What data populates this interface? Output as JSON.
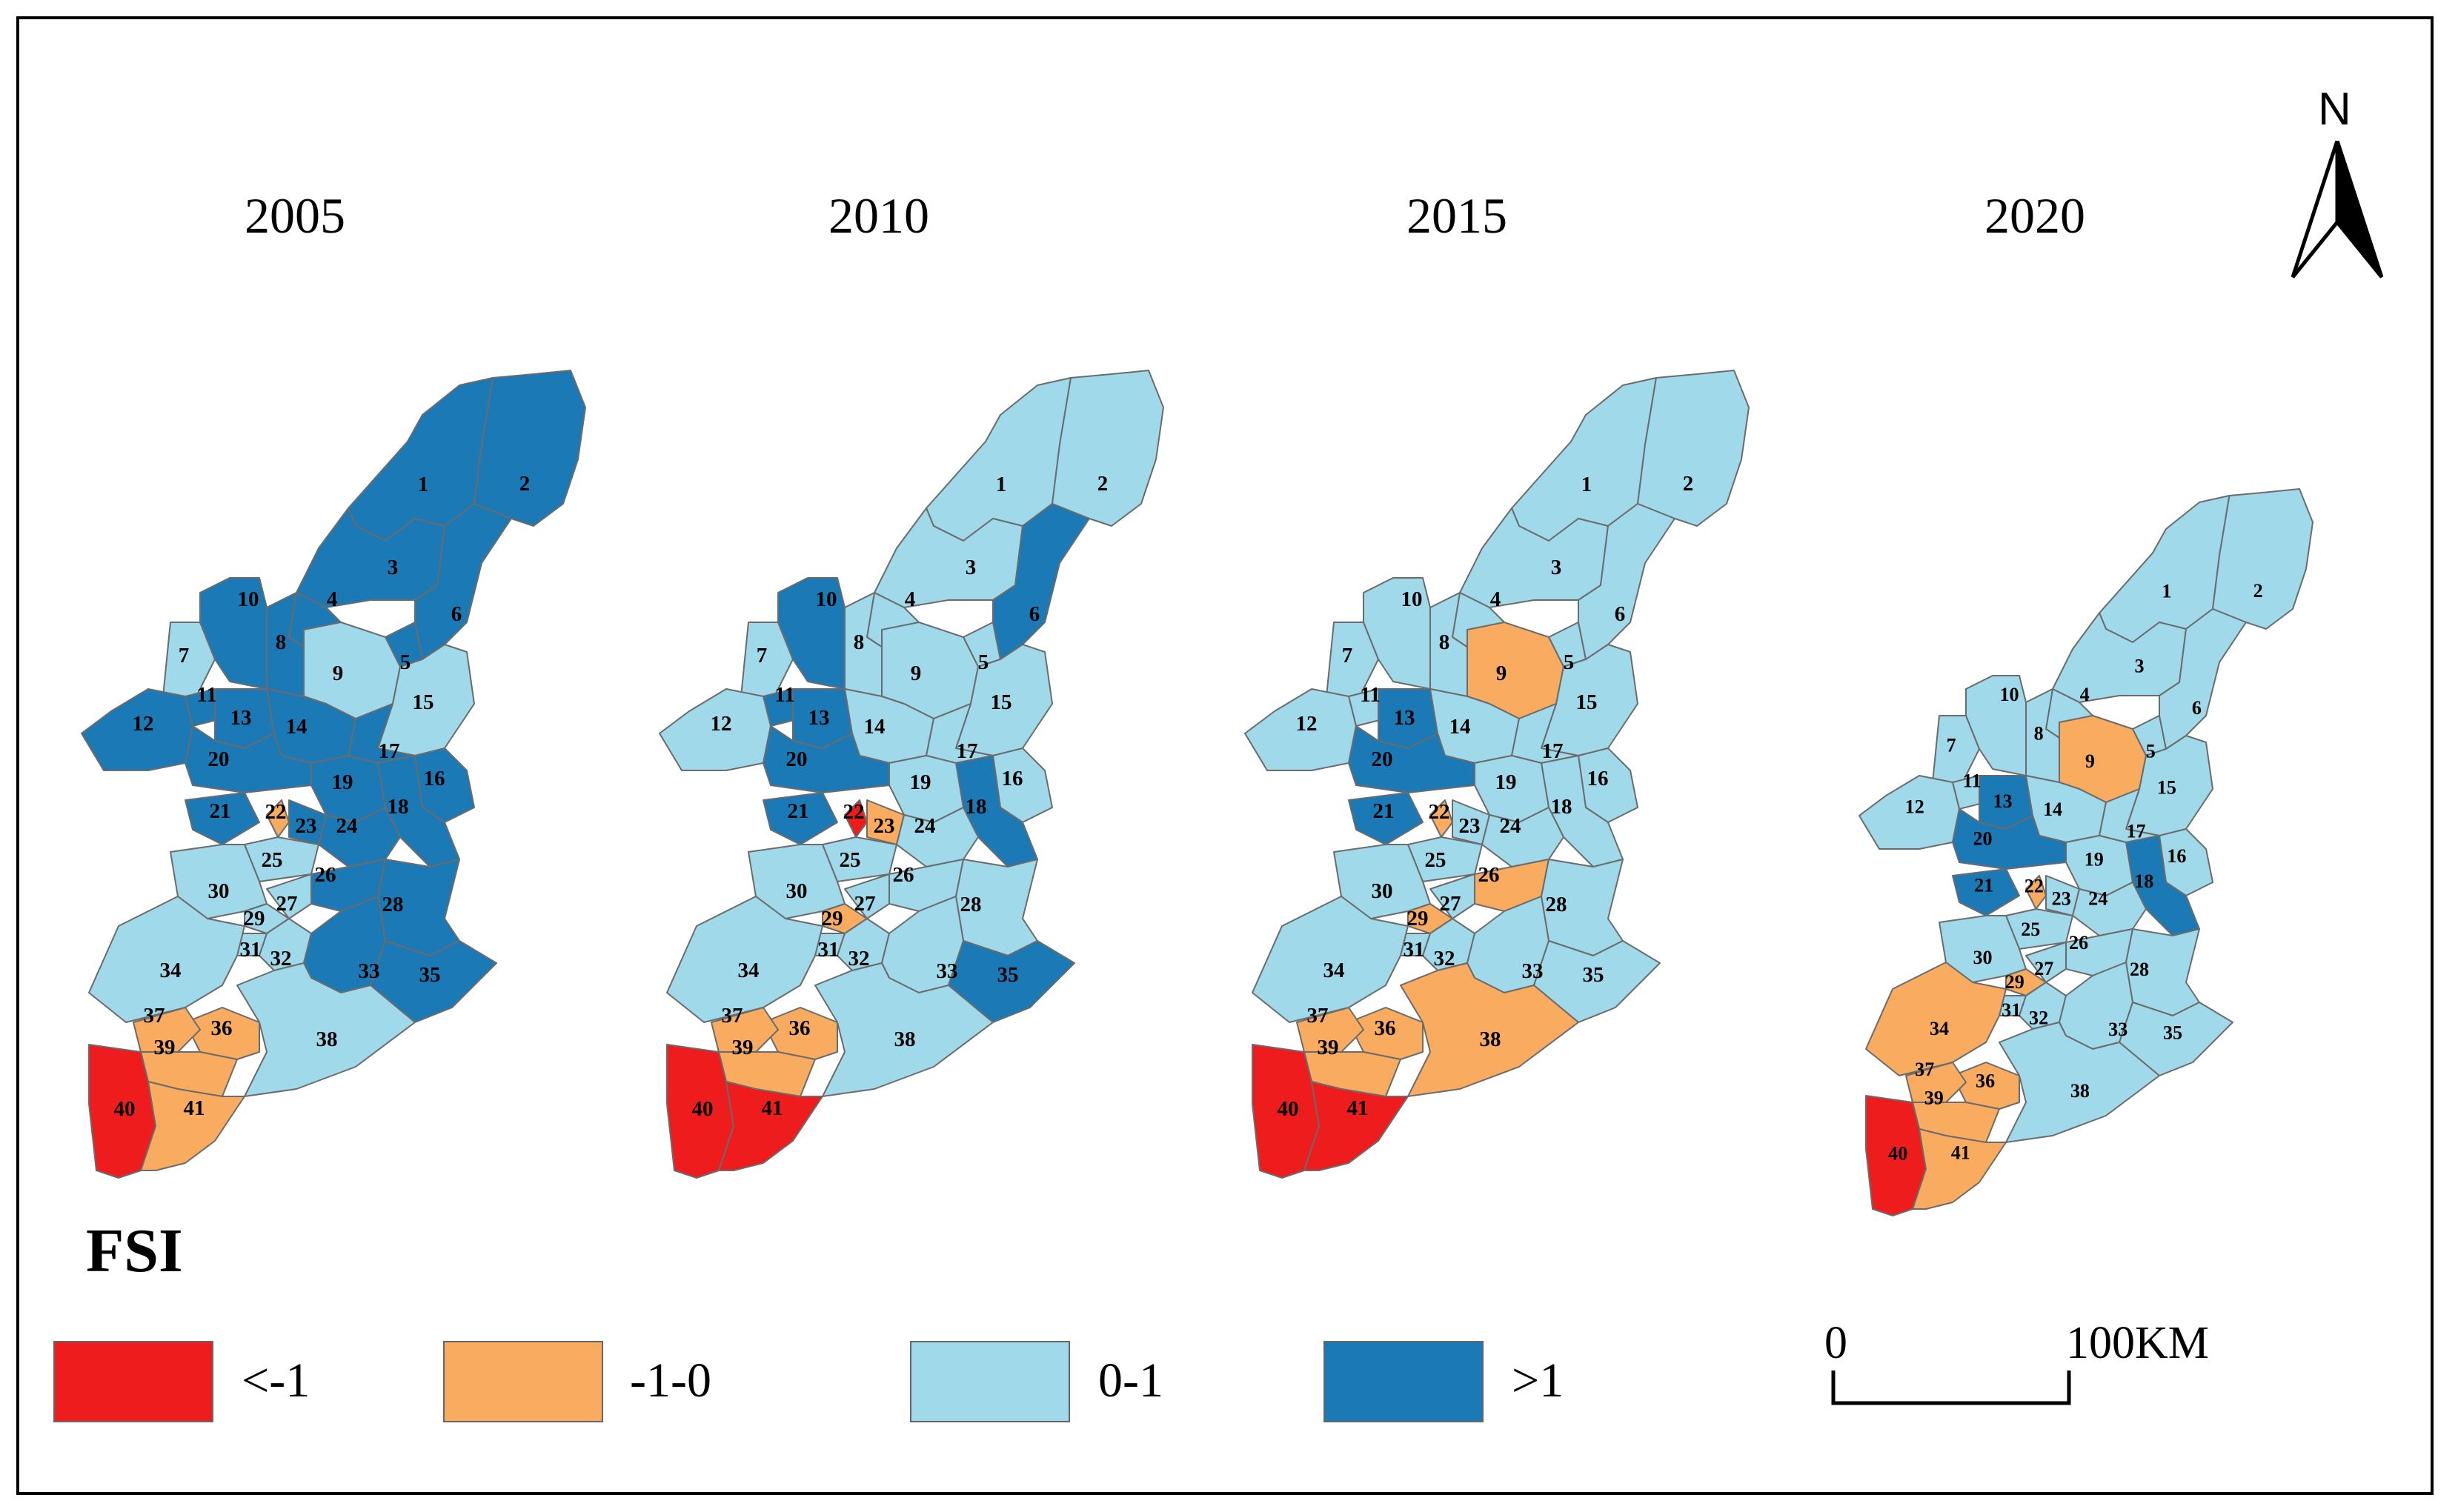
{
  "years": [
    "2005",
    "2010",
    "2015",
    "2020"
  ],
  "colors": {
    "lt_neg1": "#ee1c1c",
    "neg1_0": "#f9ab5f",
    "zero_1": "#9fd9ea",
    "gt1": "#1b79b6"
  },
  "region_ids": [
    "1",
    "2",
    "3",
    "4",
    "5",
    "6",
    "7",
    "8",
    "9",
    "10",
    "11",
    "12",
    "13",
    "14",
    "15",
    "16",
    "17",
    "18",
    "19",
    "20",
    "21",
    "22",
    "23",
    "24",
    "25",
    "26",
    "27",
    "28",
    "29",
    "30",
    "31",
    "32",
    "33",
    "34",
    "35",
    "36",
    "37",
    "38",
    "39",
    "40",
    "41"
  ],
  "panels": [
    {
      "year": "2005",
      "classes": {
        "1": "gt1",
        "2": "gt1",
        "3": "gt1",
        "4": "gt1",
        "5": "gt1",
        "6": "gt1",
        "7": "zero_1",
        "8": "gt1",
        "9": "zero_1",
        "10": "gt1",
        "11": "gt1",
        "12": "gt1",
        "13": "gt1",
        "14": "gt1",
        "15": "zero_1",
        "16": "gt1",
        "17": "gt1",
        "18": "gt1",
        "19": "gt1",
        "20": "gt1",
        "21": "gt1",
        "22": "neg1_0",
        "23": "gt1",
        "24": "gt1",
        "25": "zero_1",
        "26": "gt1",
        "27": "zero_1",
        "28": "gt1",
        "29": "zero_1",
        "30": "zero_1",
        "31": "zero_1",
        "32": "zero_1",
        "33": "gt1",
        "34": "zero_1",
        "35": "gt1",
        "36": "neg1_0",
        "37": "neg1_0",
        "38": "zero_1",
        "39": "neg1_0",
        "40": "lt_neg1",
        "41": "neg1_0"
      }
    },
    {
      "year": "2010",
      "classes": {
        "1": "zero_1",
        "2": "zero_1",
        "3": "zero_1",
        "4": "zero_1",
        "5": "zero_1",
        "6": "gt1",
        "7": "zero_1",
        "8": "zero_1",
        "9": "zero_1",
        "10": "gt1",
        "11": "gt1",
        "12": "zero_1",
        "13": "gt1",
        "14": "zero_1",
        "15": "zero_1",
        "16": "zero_1",
        "17": "zero_1",
        "18": "gt1",
        "19": "zero_1",
        "20": "gt1",
        "21": "gt1",
        "22": "lt_neg1",
        "23": "neg1_0",
        "24": "zero_1",
        "25": "zero_1",
        "26": "zero_1",
        "27": "zero_1",
        "28": "zero_1",
        "29": "neg1_0",
        "30": "zero_1",
        "31": "zero_1",
        "32": "zero_1",
        "33": "zero_1",
        "34": "zero_1",
        "35": "gt1",
        "36": "neg1_0",
        "37": "neg1_0",
        "38": "zero_1",
        "39": "neg1_0",
        "40": "lt_neg1",
        "41": "lt_neg1"
      }
    },
    {
      "year": "2015",
      "classes": {
        "1": "zero_1",
        "2": "zero_1",
        "3": "zero_1",
        "4": "zero_1",
        "5": "zero_1",
        "6": "zero_1",
        "7": "zero_1",
        "8": "zero_1",
        "9": "neg1_0",
        "10": "zero_1",
        "11": "zero_1",
        "12": "zero_1",
        "13": "gt1",
        "14": "zero_1",
        "15": "zero_1",
        "16": "zero_1",
        "17": "zero_1",
        "18": "zero_1",
        "19": "zero_1",
        "20": "gt1",
        "21": "gt1",
        "22": "neg1_0",
        "23": "zero_1",
        "24": "zero_1",
        "25": "zero_1",
        "26": "neg1_0",
        "27": "zero_1",
        "28": "zero_1",
        "29": "neg1_0",
        "30": "zero_1",
        "31": "zero_1",
        "32": "zero_1",
        "33": "zero_1",
        "34": "zero_1",
        "35": "zero_1",
        "36": "neg1_0",
        "37": "neg1_0",
        "38": "neg1_0",
        "39": "neg1_0",
        "40": "lt_neg1",
        "41": "lt_neg1"
      }
    },
    {
      "year": "2020",
      "classes": {
        "1": "zero_1",
        "2": "zero_1",
        "3": "zero_1",
        "4": "zero_1",
        "5": "zero_1",
        "6": "zero_1",
        "7": "zero_1",
        "8": "zero_1",
        "9": "neg1_0",
        "10": "zero_1",
        "11": "zero_1",
        "12": "zero_1",
        "13": "gt1",
        "14": "zero_1",
        "15": "zero_1",
        "16": "zero_1",
        "17": "zero_1",
        "18": "gt1",
        "19": "zero_1",
        "20": "gt1",
        "21": "gt1",
        "22": "neg1_0",
        "23": "zero_1",
        "24": "zero_1",
        "25": "zero_1",
        "26": "zero_1",
        "27": "zero_1",
        "28": "zero_1",
        "29": "neg1_0",
        "30": "zero_1",
        "31": "zero_1",
        "32": "zero_1",
        "33": "zero_1",
        "34": "neg1_0",
        "35": "zero_1",
        "36": "neg1_0",
        "37": "neg1_0",
        "38": "zero_1",
        "39": "neg1_0",
        "40": "lt_neg1",
        "41": "neg1_0"
      }
    }
  ],
  "legend": {
    "title": "FSI",
    "items": [
      {
        "key": "lt_neg1",
        "label": "<-1"
      },
      {
        "key": "neg1_0",
        "label": "-1-0"
      },
      {
        "key": "zero_1",
        "label": "0-1"
      },
      {
        "key": "gt1",
        "label": ">1"
      }
    ]
  },
  "north": "N",
  "scale": {
    "start": "0",
    "end": "100KM"
  }
}
